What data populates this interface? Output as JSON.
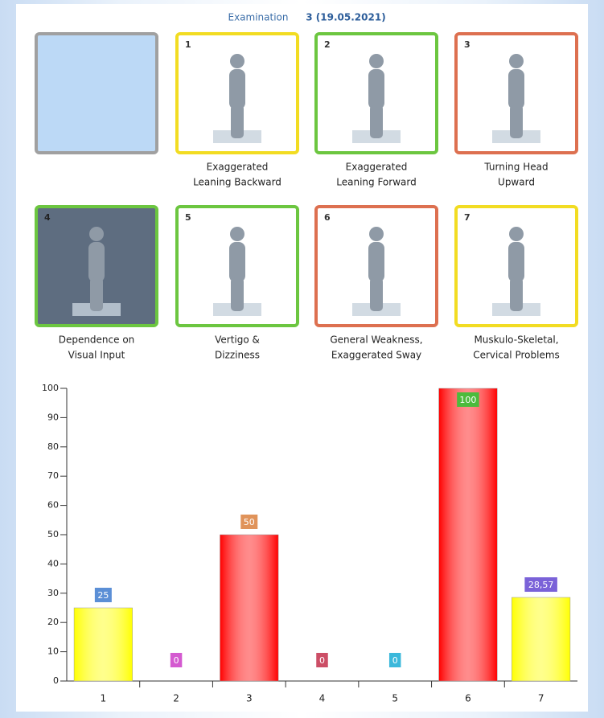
{
  "header": {
    "label": "Examination",
    "value": "3 (19.05.2021)"
  },
  "panels": [
    {
      "border": "#a0a0a0",
      "fill": "#bcd9f6"
    },
    {
      "number": "1",
      "border": "#f2dc22",
      "fill": "#ffffff",
      "caption": [
        "Exaggerated",
        "Leaning Backward"
      ]
    },
    {
      "number": "2",
      "border": "#6cc640",
      "fill": "#ffffff",
      "caption": [
        "Exaggerated",
        "Leaning Forward"
      ]
    },
    {
      "number": "3",
      "border": "#dd7050",
      "fill": "#ffffff",
      "caption": [
        "Turning Head",
        "Upward"
      ]
    },
    {
      "number": "4",
      "border": "#6cc640",
      "fill": "#5e6d80",
      "caption": [
        "Dependence on",
        "Visual Input"
      ]
    },
    {
      "number": "5",
      "border": "#6cc640",
      "fill": "#ffffff",
      "caption": [
        "Vertigo &",
        "Dizziness"
      ]
    },
    {
      "number": "6",
      "border": "#dd7050",
      "fill": "#ffffff",
      "caption": [
        "General Weakness,",
        "Exaggerated Sway"
      ]
    },
    {
      "number": "7",
      "border": "#f2dc22",
      "fill": "#ffffff",
      "caption": [
        "Muskulo-Skeletal,",
        "Cervical Problems"
      ]
    }
  ],
  "chart_data": {
    "type": "bar",
    "categories": [
      "1",
      "2",
      "3",
      "4",
      "5",
      "6",
      "7"
    ],
    "values": [
      25,
      0,
      50,
      0,
      0,
      100,
      28.57
    ],
    "value_labels": [
      "25",
      "0",
      "50",
      "0",
      "0",
      "100",
      "28,57"
    ],
    "colors": [
      "#ffff00",
      null,
      "#ff0000",
      null,
      null,
      "#ff0000",
      "#ffff00"
    ],
    "label_colors": [
      "#5b8fd6",
      "#d45ad0",
      "#e0935a",
      "#cc4e66",
      "#3bb8db",
      "#4cbb3c",
      "#7a62d8"
    ],
    "ylim": [
      0,
      100
    ],
    "yticks": [
      0,
      10,
      20,
      30,
      40,
      50,
      60,
      70,
      80,
      90,
      100
    ]
  }
}
